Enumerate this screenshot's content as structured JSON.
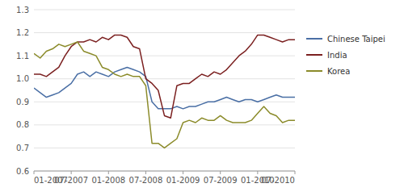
{
  "chart_data": {
    "type": "line",
    "categories": [
      "01-2007",
      null,
      null,
      null,
      null,
      null,
      "07-2007",
      null,
      null,
      null,
      null,
      null,
      "01-2008",
      null,
      null,
      null,
      null,
      null,
      "07-2008",
      null,
      null,
      null,
      null,
      null,
      "01-2009",
      null,
      null,
      null,
      null,
      null,
      "07-2009",
      null,
      null,
      null,
      null,
      null,
      "01-2010",
      null,
      null,
      null,
      null,
      null,
      "07-2010"
    ],
    "series": [
      {
        "name": "Chinese Taipei",
        "color": "#4a6fa5",
        "values": [
          0.96,
          0.94,
          0.92,
          0.93,
          0.94,
          0.96,
          0.98,
          1.02,
          1.03,
          1.01,
          1.03,
          1.02,
          1.01,
          1.03,
          1.04,
          1.05,
          1.04,
          1.03,
          1.01,
          0.9,
          0.87,
          0.87,
          0.87,
          0.88,
          0.87,
          0.88,
          0.88,
          0.89,
          0.9,
          0.9,
          0.91,
          0.92,
          0.91,
          0.9,
          0.91,
          0.91,
          0.9,
          0.91,
          0.92,
          0.93,
          0.92,
          0.92,
          0.92
        ]
      },
      {
        "name": "India",
        "color": "#7b2020",
        "values": [
          1.02,
          1.02,
          1.01,
          1.03,
          1.05,
          1.1,
          1.14,
          1.16,
          1.16,
          1.17,
          1.16,
          1.18,
          1.17,
          1.19,
          1.19,
          1.18,
          1.14,
          1.13,
          1.0,
          0.98,
          0.95,
          0.84,
          0.83,
          0.97,
          0.98,
          0.98,
          1.0,
          1.02,
          1.01,
          1.03,
          1.02,
          1.04,
          1.07,
          1.1,
          1.12,
          1.15,
          1.19,
          1.19,
          1.18,
          1.17,
          1.16,
          1.17,
          1.17
        ]
      },
      {
        "name": "Korea",
        "color": "#8b8b2a",
        "values": [
          1.11,
          1.09,
          1.12,
          1.13,
          1.15,
          1.14,
          1.15,
          1.16,
          1.12,
          1.11,
          1.1,
          1.05,
          1.04,
          1.02,
          1.01,
          1.02,
          1.01,
          1.01,
          0.97,
          0.72,
          0.72,
          0.7,
          0.72,
          0.74,
          0.81,
          0.82,
          0.81,
          0.83,
          0.82,
          0.82,
          0.84,
          0.82,
          0.81,
          0.81,
          0.81,
          0.82,
          0.85,
          0.88,
          0.85,
          0.84,
          0.81,
          0.82,
          0.82
        ]
      }
    ],
    "ylim": [
      0.6,
      1.3
    ],
    "yticks": [
      0.6,
      0.7,
      0.8,
      0.9,
      {
        "value": 1.0,
        "label": "1.0"
      },
      1.1,
      1.2,
      1.3
    ],
    "grid": true,
    "legend": "right"
  }
}
